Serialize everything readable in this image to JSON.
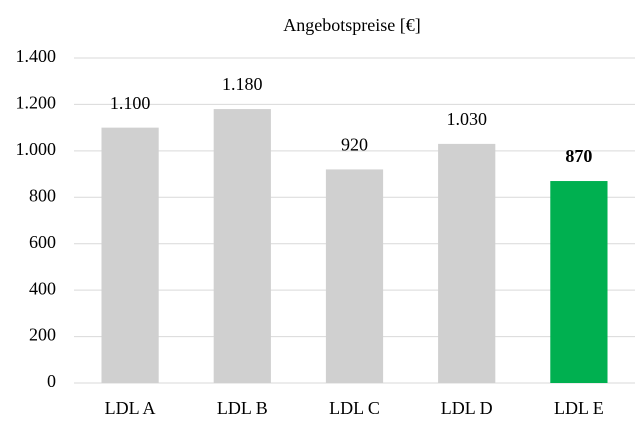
{
  "chart_data": {
    "type": "bar",
    "title": "Angebotspreise [€]",
    "categories": [
      "LDL A",
      "LDL B",
      "LDL C",
      "LDL D",
      "LDL E"
    ],
    "values": [
      1100,
      1180,
      920,
      1030,
      870
    ],
    "value_labels": [
      "1.100",
      "1.180",
      "920",
      "1.030",
      "870"
    ],
    "colors": [
      "#d0d0d0",
      "#d0d0d0",
      "#d0d0d0",
      "#d0d0d0",
      "#00b050"
    ],
    "bold_value_labels": [
      false,
      false,
      false,
      false,
      true
    ],
    "ylim": [
      0,
      1400
    ],
    "yticks": [
      0,
      200,
      400,
      600,
      800,
      {
        "value": 1000,
        "label": "1.000"
      },
      {
        "value": 1200,
        "label": "1.200"
      },
      {
        "value": 1400,
        "label": "1.400"
      }
    ],
    "grid": true
  }
}
